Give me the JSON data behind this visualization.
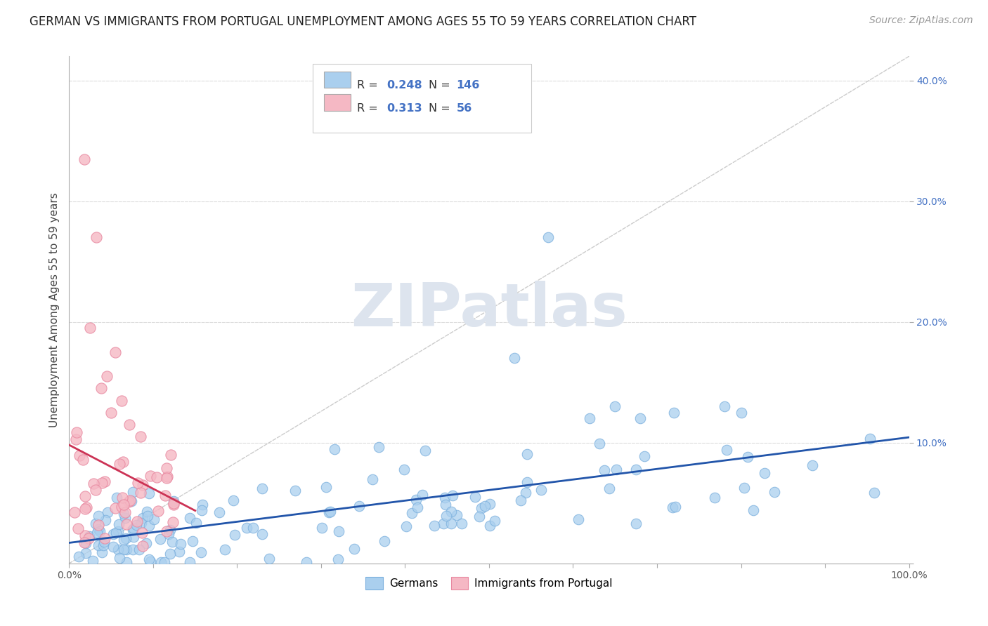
{
  "title": "GERMAN VS IMMIGRANTS FROM PORTUGAL UNEMPLOYMENT AMONG AGES 55 TO 59 YEARS CORRELATION CHART",
  "source": "Source: ZipAtlas.com",
  "ylabel": "Unemployment Among Ages 55 to 59 years",
  "xlim": [
    0.0,
    1.0
  ],
  "ylim": [
    0.0,
    0.42
  ],
  "xtick_positions": [
    0.0,
    0.1,
    0.2,
    0.3,
    0.4,
    0.5,
    0.6,
    0.7,
    0.8,
    0.9,
    1.0
  ],
  "xtick_labels": [
    "0.0%",
    "",
    "",
    "",
    "",
    "",
    "",
    "",
    "",
    "",
    "100.0%"
  ],
  "ytick_positions": [
    0.0,
    0.1,
    0.2,
    0.3,
    0.4
  ],
  "ytick_labels": [
    "",
    "10.0%",
    "20.0%",
    "30.0%",
    "40.0%"
  ],
  "legend_german_label": "Germans",
  "legend_portugal_label": "Immigrants from Portugal",
  "german_R": "0.248",
  "german_N": "146",
  "portugal_R": "0.313",
  "portugal_N": "56",
  "german_color": "#aacfee",
  "german_edge_color": "#7aafdd",
  "german_line_color": "#2255aa",
  "portugal_color": "#f5b8c4",
  "portugal_edge_color": "#e888a0",
  "portugal_line_color": "#cc3355",
  "diagonal_color": "#cccccc",
  "grid_color": "#dddddd",
  "watermark_text": "ZIPatlas",
  "watermark_color": "#dde4ee",
  "background_color": "#ffffff",
  "title_fontsize": 12,
  "source_fontsize": 10,
  "axis_label_fontsize": 11,
  "tick_fontsize": 10,
  "ytick_color": "#4472c4",
  "legend_r_n_color": "#4472c4",
  "legend_label_color": "#333333"
}
